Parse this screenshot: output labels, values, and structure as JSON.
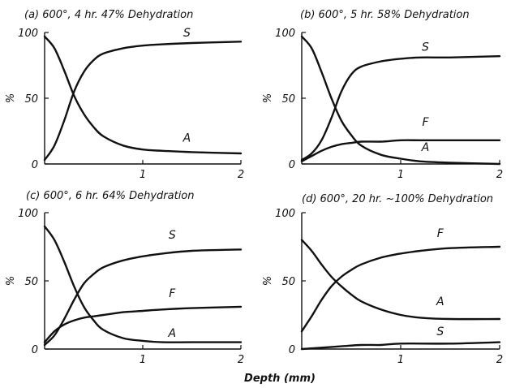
{
  "xlabel": "Depth (mm)",
  "chart_data": [
    {
      "type": "line",
      "title": "(a) 600°, 4 hr.   47% Dehydration",
      "xlim": [
        0,
        2
      ],
      "ylim": [
        0,
        100
      ],
      "ylabel": "%",
      "xticks": [
        "1",
        "2"
      ],
      "yticks": [
        "0",
        "50",
        "100"
      ],
      "series": [
        {
          "name": "S",
          "x": [
            0,
            0.1,
            0.2,
            0.3,
            0.4,
            0.5,
            0.6,
            0.8,
            1.0,
            1.2,
            1.5,
            2.0
          ],
          "y": [
            3,
            14,
            33,
            55,
            70,
            79,
            84,
            88,
            90,
            91,
            92,
            93
          ]
        },
        {
          "name": "A",
          "x": [
            0,
            0.1,
            0.2,
            0.3,
            0.4,
            0.5,
            0.6,
            0.8,
            1.0,
            1.2,
            1.5,
            2.0
          ],
          "y": [
            97,
            88,
            71,
            52,
            38,
            28,
            21,
            14,
            11,
            10,
            9,
            8
          ]
        }
      ]
    },
    {
      "type": "line",
      "title": "(b) 600°, 5 hr.   58% Dehydration",
      "xlim": [
        0,
        2
      ],
      "ylim": [
        0,
        100
      ],
      "ylabel": "%",
      "xticks": [
        "1",
        "2"
      ],
      "yticks": [
        "0",
        "50",
        "100"
      ],
      "series": [
        {
          "name": "S",
          "x": [
            0,
            0.1,
            0.2,
            0.3,
            0.4,
            0.5,
            0.6,
            0.8,
            1.0,
            1.2,
            1.5,
            2.0
          ],
          "y": [
            3,
            8,
            18,
            35,
            55,
            68,
            74,
            78,
            80,
            81,
            81,
            82
          ]
        },
        {
          "name": "F",
          "x": [
            0,
            0.1,
            0.2,
            0.3,
            0.4,
            0.5,
            0.6,
            0.8,
            1.0,
            1.2,
            1.5,
            2.0
          ],
          "y": [
            2,
            6,
            10,
            13,
            15,
            16,
            17,
            17,
            18,
            18,
            18,
            18
          ]
        },
        {
          "name": "A",
          "x": [
            0,
            0.1,
            0.2,
            0.3,
            0.4,
            0.5,
            0.6,
            0.8,
            1.0,
            1.2,
            1.5,
            2.0
          ],
          "y": [
            97,
            88,
            70,
            50,
            33,
            22,
            14,
            7,
            4,
            2,
            1,
            0
          ]
        }
      ]
    },
    {
      "type": "line",
      "title": "(c) 600°, 6 hr.   64% Dehydration",
      "xlim": [
        0,
        2
      ],
      "ylim": [
        0,
        100
      ],
      "ylabel": "%",
      "xticks": [
        "1",
        "2"
      ],
      "yticks": [
        "0",
        "50",
        "100"
      ],
      "series": [
        {
          "name": "S",
          "x": [
            0,
            0.1,
            0.2,
            0.3,
            0.4,
            0.5,
            0.6,
            0.8,
            1.0,
            1.2,
            1.5,
            2.0
          ],
          "y": [
            3,
            10,
            22,
            36,
            48,
            55,
            60,
            65,
            68,
            70,
            72,
            73
          ]
        },
        {
          "name": "F",
          "x": [
            0,
            0.1,
            0.2,
            0.3,
            0.4,
            0.5,
            0.6,
            0.8,
            1.0,
            1.2,
            1.5,
            2.0
          ],
          "y": [
            5,
            13,
            18,
            21,
            23,
            24,
            25,
            27,
            28,
            29,
            30,
            31
          ]
        },
        {
          "name": "A",
          "x": [
            0,
            0.1,
            0.2,
            0.3,
            0.4,
            0.5,
            0.6,
            0.8,
            1.0,
            1.2,
            1.5,
            2.0
          ],
          "y": [
            90,
            80,
            64,
            46,
            31,
            21,
            14,
            8,
            6,
            5,
            5,
            5
          ]
        }
      ]
    },
    {
      "type": "line",
      "title": "(d) 600°, 20 hr.  ~100% Dehydration",
      "xlim": [
        0,
        2
      ],
      "ylim": [
        0,
        100
      ],
      "ylabel": "%",
      "xticks": [
        "1",
        "2"
      ],
      "yticks": [
        "0",
        "50",
        "100"
      ],
      "series": [
        {
          "name": "F",
          "x": [
            0,
            0.1,
            0.2,
            0.3,
            0.4,
            0.5,
            0.6,
            0.8,
            1.0,
            1.2,
            1.5,
            2.0
          ],
          "y": [
            13,
            24,
            36,
            46,
            53,
            58,
            62,
            67,
            70,
            72,
            74,
            75
          ]
        },
        {
          "name": "A",
          "x": [
            0,
            0.1,
            0.2,
            0.3,
            0.4,
            0.5,
            0.6,
            0.8,
            1.0,
            1.2,
            1.5,
            2.0
          ],
          "y": [
            80,
            72,
            62,
            53,
            46,
            40,
            35,
            29,
            25,
            23,
            22,
            22
          ]
        },
        {
          "name": "S",
          "x": [
            0,
            0.2,
            0.4,
            0.6,
            0.8,
            1.0,
            1.5,
            2.0
          ],
          "y": [
            0,
            1,
            2,
            3,
            3,
            4,
            4,
            5
          ]
        }
      ]
    }
  ]
}
